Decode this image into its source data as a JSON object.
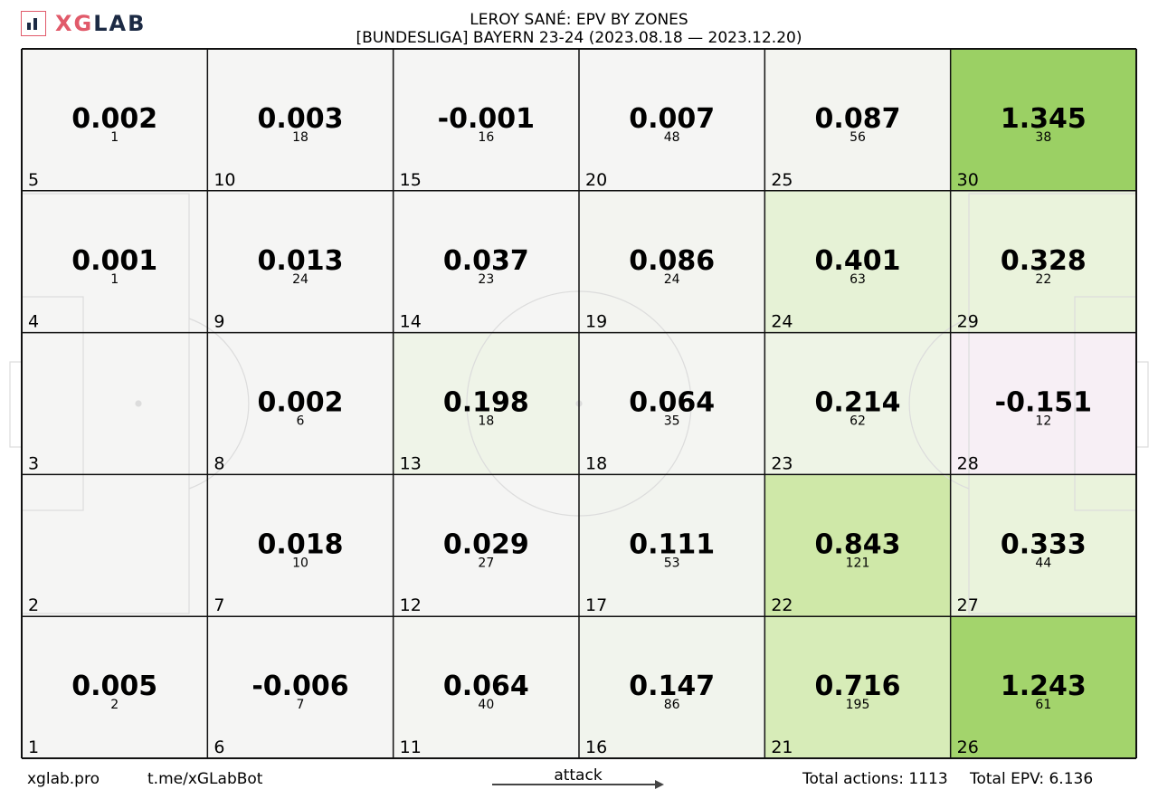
{
  "logo": {
    "text_x": "X",
    "text_g": "G",
    "text_lab": "LAB",
    "accent": "#e15a6a",
    "dark": "#1c2a44"
  },
  "title": {
    "line1": "LEROY SANÉ: EPV BY ZONES",
    "line2": "[BUNDESLIGA] BAYERN 23-24 (2023.08.18 — 2023.12.20)"
  },
  "chart_data": {
    "type": "heatmap",
    "title": "LEROY SANÉ: EPV BY ZONES",
    "subtitle": "[BUNDESLIGA] BAYERN 23-24 (2023.08.18 — 2023.12.20)",
    "columns": 6,
    "rows": 5,
    "zones": [
      {
        "id": 1,
        "col": 0,
        "row": 4,
        "epv": "0.005",
        "actions": "2",
        "color": "#f5f5f4"
      },
      {
        "id": 2,
        "col": 0,
        "row": 3,
        "epv": "",
        "actions": "",
        "color": "#f5f5f4"
      },
      {
        "id": 3,
        "col": 0,
        "row": 2,
        "epv": "",
        "actions": "",
        "color": "#f5f5f4"
      },
      {
        "id": 4,
        "col": 0,
        "row": 1,
        "epv": "0.001",
        "actions": "1",
        "color": "#f5f5f4"
      },
      {
        "id": 5,
        "col": 0,
        "row": 0,
        "epv": "0.002",
        "actions": "1",
        "color": "#f5f5f4"
      },
      {
        "id": 6,
        "col": 1,
        "row": 4,
        "epv": "-0.006",
        "actions": "7",
        "color": "#f5f5f4"
      },
      {
        "id": 7,
        "col": 1,
        "row": 3,
        "epv": "0.018",
        "actions": "10",
        "color": "#f5f5f4"
      },
      {
        "id": 8,
        "col": 1,
        "row": 2,
        "epv": "0.002",
        "actions": "6",
        "color": "#f5f5f4"
      },
      {
        "id": 9,
        "col": 1,
        "row": 1,
        "epv": "0.013",
        "actions": "24",
        "color": "#f5f5f4"
      },
      {
        "id": 10,
        "col": 1,
        "row": 0,
        "epv": "0.003",
        "actions": "18",
        "color": "#f5f5f4"
      },
      {
        "id": 11,
        "col": 2,
        "row": 4,
        "epv": "0.064",
        "actions": "40",
        "color": "#f4f5f2"
      },
      {
        "id": 12,
        "col": 2,
        "row": 3,
        "epv": "0.029",
        "actions": "27",
        "color": "#f5f5f4"
      },
      {
        "id": 13,
        "col": 2,
        "row": 2,
        "epv": "0.198",
        "actions": "18",
        "color": "#eff4e8"
      },
      {
        "id": 14,
        "col": 2,
        "row": 1,
        "epv": "0.037",
        "actions": "23",
        "color": "#f5f5f4"
      },
      {
        "id": 15,
        "col": 2,
        "row": 0,
        "epv": "-0.001",
        "actions": "16",
        "color": "#f5f5f4"
      },
      {
        "id": 16,
        "col": 3,
        "row": 4,
        "epv": "0.147",
        "actions": "86",
        "color": "#f1f4ed"
      },
      {
        "id": 17,
        "col": 3,
        "row": 3,
        "epv": "0.111",
        "actions": "53",
        "color": "#f2f4ef"
      },
      {
        "id": 18,
        "col": 3,
        "row": 2,
        "epv": "0.064",
        "actions": "35",
        "color": "#f4f5f2"
      },
      {
        "id": 19,
        "col": 3,
        "row": 1,
        "epv": "0.086",
        "actions": "24",
        "color": "#f3f4f0"
      },
      {
        "id": 20,
        "col": 3,
        "row": 0,
        "epv": "0.007",
        "actions": "48",
        "color": "#f5f5f4"
      },
      {
        "id": 21,
        "col": 4,
        "row": 4,
        "epv": "0.716",
        "actions": "195",
        "color": "#d7ecb8"
      },
      {
        "id": 22,
        "col": 4,
        "row": 3,
        "epv": "0.843",
        "actions": "121",
        "color": "#cfe8a8"
      },
      {
        "id": 23,
        "col": 4,
        "row": 2,
        "epv": "0.214",
        "actions": "62",
        "color": "#eef4e6"
      },
      {
        "id": 24,
        "col": 4,
        "row": 1,
        "epv": "0.401",
        "actions": "63",
        "color": "#e6f2d6"
      },
      {
        "id": 25,
        "col": 4,
        "row": 0,
        "epv": "0.087",
        "actions": "56",
        "color": "#f3f4f0"
      },
      {
        "id": 26,
        "col": 5,
        "row": 4,
        "epv": "1.243",
        "actions": "61",
        "color": "#a3d46c"
      },
      {
        "id": 27,
        "col": 5,
        "row": 3,
        "epv": "0.333",
        "actions": "44",
        "color": "#eaf3dc"
      },
      {
        "id": 28,
        "col": 5,
        "row": 2,
        "epv": "-0.151",
        "actions": "12",
        "color": "#f7eff5"
      },
      {
        "id": 29,
        "col": 5,
        "row": 1,
        "epv": "0.328",
        "actions": "22",
        "color": "#eaf3dc"
      },
      {
        "id": 30,
        "col": 5,
        "row": 0,
        "epv": "1.345",
        "actions": "38",
        "color": "#9bd064"
      }
    ]
  },
  "footer": {
    "site": "xglab.pro",
    "bot": "t.me/xGLabBot",
    "direction": "attack",
    "total_actions_label": "Total actions: 1113",
    "total_epv_label": "Total EPV: 6.136"
  }
}
